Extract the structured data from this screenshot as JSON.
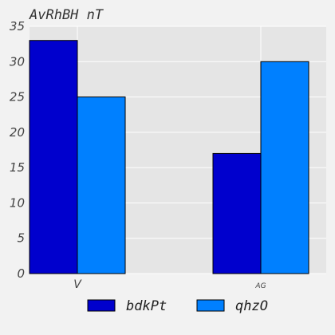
{
  "chart_data": {
    "type": "bar",
    "title": "AvRhBH nT",
    "xlabel": "",
    "ylabel": "",
    "categories": [
      "V",
      "AG"
    ],
    "series": [
      {
        "name": "bdkPt",
        "values": [
          33,
          17
        ],
        "color": "#0000cd"
      },
      {
        "name": "qhzO",
        "values": [
          25,
          30
        ],
        "color": "#0080ff"
      }
    ],
    "ylim": [
      0,
      35
    ],
    "yticks": [
      0,
      5,
      10,
      15,
      20,
      25,
      30,
      35
    ],
    "grid": true,
    "legend": "bottom-center"
  },
  "colors": {
    "background": "#f2f2f2",
    "plot_area": "#e5e5e5",
    "grid": "#ffffff",
    "bar_edge": "#000000"
  }
}
